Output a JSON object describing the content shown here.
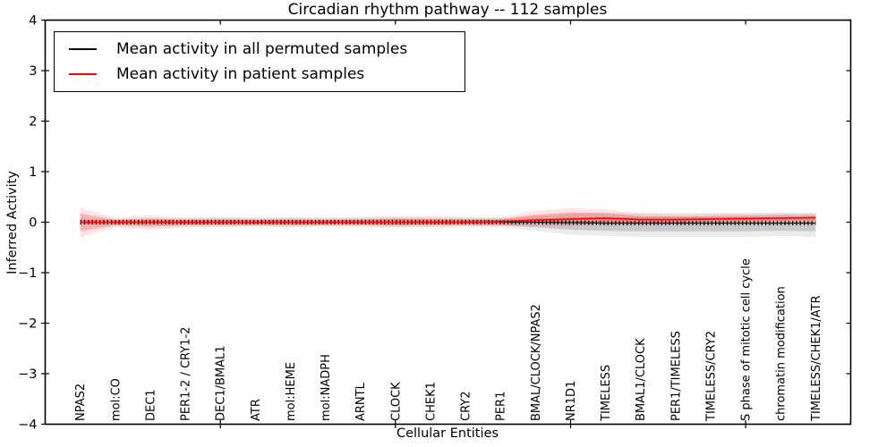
{
  "figure": {
    "title": "Circadian rhythm pathway -- 112 samples",
    "xlabel": "Cellular Entities",
    "ylabel": "Inferred Activity",
    "background": "#ffffff",
    "axis_color": "#000000"
  },
  "legend": {
    "items": [
      {
        "label": "Mean activity in all permuted samples",
        "color": "#000000"
      },
      {
        "label": "Mean activity in patient samples",
        "color": "#ff0000"
      }
    ]
  },
  "chart_data": {
    "type": "line",
    "title": "Circadian rhythm pathway -- 112 samples",
    "xlabel": "Cellular Entities",
    "ylabel": "Inferred Activity",
    "grid": false,
    "legend_position": "upper left",
    "ylim": [
      -4,
      4
    ],
    "yticks": [
      -4,
      -3,
      -2,
      -1,
      0,
      1,
      2,
      3,
      4
    ],
    "xtick_positions": [
      5,
      10,
      15,
      20
    ],
    "categories": [
      "NPAS2",
      "mol:CO",
      "DEC1",
      "PER1-2 / CRY1-2",
      "DEC1/BMAL1",
      "ATR",
      "mol:HEME",
      "mol:NADPH",
      "ARNTL",
      "CLOCK",
      "CHEK1",
      "CRY2",
      "PER1",
      "BMAL/CLOCK/NPAS2",
      "NR1D1",
      "TIMELESS",
      "BMAL1/CLOCK",
      "PER1/TIMELESS",
      "TIMELESS/CRY2",
      "S phase of mitotic cell cycle",
      "chromatin modification",
      "TIMELESS/CHEK1/ATR"
    ],
    "series": [
      {
        "name": "Mean activity in all permuted samples",
        "color": "#000000",
        "values": [
          0,
          0,
          0,
          0,
          0,
          0,
          0,
          0,
          0,
          0,
          0,
          0,
          0,
          0,
          -0.01,
          -0.02,
          -0.02,
          -0.02,
          -0.02,
          -0.02,
          -0.02,
          -0.02
        ],
        "band_upper": [
          0.04,
          0.04,
          0.04,
          0.05,
          0.06,
          0.05,
          0.06,
          0.05,
          0.05,
          0.06,
          0.05,
          0.05,
          0.05,
          0.07,
          0.1,
          0.1,
          0.1,
          0.1,
          0.1,
          0.1,
          0.1,
          0.1
        ],
        "band_lower": [
          -0.04,
          -0.04,
          -0.04,
          -0.05,
          -0.06,
          -0.05,
          -0.06,
          -0.05,
          -0.05,
          -0.06,
          -0.05,
          -0.05,
          -0.06,
          -0.1,
          -0.15,
          -0.17,
          -0.18,
          -0.18,
          -0.18,
          -0.18,
          -0.17,
          -0.18
        ],
        "markers": "vertical-ticks"
      },
      {
        "name": "Mean activity in patient samples",
        "color": "#ff0000",
        "values": [
          0,
          0,
          0,
          0,
          0,
          0,
          0,
          0,
          0,
          0,
          0,
          0,
          0.01,
          0.04,
          0.06,
          0.08,
          0.05,
          0.05,
          0.06,
          0.07,
          0.08,
          0.09
        ],
        "band_upper": [
          0.17,
          0.05,
          0.08,
          0.05,
          0.05,
          0.05,
          0.05,
          0.05,
          0.06,
          0.07,
          0.07,
          0.06,
          0.06,
          0.15,
          0.19,
          0.18,
          0.12,
          0.11,
          0.12,
          0.13,
          0.14,
          0.14
        ],
        "band_lower": [
          -0.18,
          -0.06,
          -0.09,
          -0.06,
          -0.05,
          -0.05,
          -0.05,
          -0.05,
          -0.05,
          -0.06,
          -0.06,
          -0.05,
          -0.04,
          -0.03,
          -0.02,
          0.0,
          -0.01,
          -0.01,
          0.01,
          0.02,
          0.03,
          0.03
        ],
        "markers": "none"
      }
    ]
  }
}
